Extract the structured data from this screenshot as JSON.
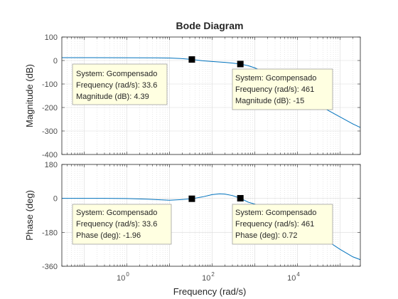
{
  "chart_data": {
    "type": "line",
    "title": "Bode Diagram",
    "xlabel": "Frequency  (rad/s)",
    "x_scale": "log",
    "xlim": [
      0.03,
      300000
    ],
    "x_ticks": [
      1,
      100,
      10000
    ],
    "x_tick_labels": [
      {
        "base": "10",
        "exp": "0"
      },
      {
        "base": "10",
        "exp": "2"
      },
      {
        "base": "10",
        "exp": "4"
      }
    ],
    "grid": true,
    "line_color": "#0072BD",
    "panels": [
      {
        "name": "magnitude",
        "ylabel": "Magnitude (dB)",
        "ylim": [
          -400,
          100
        ],
        "y_ticks": [
          100,
          0,
          -100,
          -200,
          -300,
          -400
        ],
        "y_tick_labels": [
          "100",
          "0",
          "-100",
          "-200",
          "-300",
          "-400"
        ],
        "series": {
          "x": [
            0.03,
            1,
            5,
            10,
            20,
            33.6,
            60,
            100,
            200,
            300,
            461,
            700,
            1000,
            2000,
            5000,
            10000,
            20000,
            50000,
            100000,
            200000,
            300000
          ],
          "y": [
            12,
            11.9,
            11.5,
            10.5,
            8,
            4.39,
            -1,
            -4,
            -8,
            -11,
            -15,
            -22,
            -31,
            -55,
            -95,
            -130,
            -165,
            -210,
            -240,
            -270,
            -285
          ]
        },
        "datatips": [
          {
            "marker_x": 33.6,
            "marker_y": 4.39,
            "system": "System: Gcompensado",
            "frequency": "Frequency (rad/s): 33.6",
            "value": "Magnitude (dB): 4.39"
          },
          {
            "marker_x": 461,
            "marker_y": -15,
            "system": "System: Gcompensado",
            "frequency": "Frequency (rad/s): 461",
            "value": "Magnitude (dB): -15"
          }
        ]
      },
      {
        "name": "phase",
        "ylabel": "Phase (deg)",
        "ylim": [
          -360,
          180
        ],
        "y_ticks": [
          180,
          0,
          -180,
          -360
        ],
        "y_tick_labels": [
          "180",
          "0",
          "-180",
          "-360"
        ],
        "series": {
          "x": [
            0.03,
            0.3,
            1,
            3,
            10,
            20,
            33.6,
            60,
            100,
            150,
            200,
            300,
            461,
            700,
            1000,
            2000,
            5000,
            10000,
            20000,
            50000,
            100000,
            200000,
            300000
          ],
          "y": [
            0,
            0,
            -1,
            -4,
            -10,
            -6,
            -1.96,
            8,
            20,
            24,
            23,
            15,
            0.72,
            -20,
            -30,
            -55,
            -92,
            -130,
            -165,
            -225,
            -270,
            -310,
            -325
          ]
        },
        "datatips": [
          {
            "marker_x": 33.6,
            "marker_y": -1.96,
            "system": "System: Gcompensado",
            "frequency": "Frequency (rad/s): 33.6",
            "value": "Phase (deg): -1.96"
          },
          {
            "marker_x": 461,
            "marker_y": 0.72,
            "system": "System: Gcompensado",
            "frequency": "Frequency (rad/s): 461",
            "value": "Phase (deg): 0.72"
          }
        ]
      }
    ]
  }
}
